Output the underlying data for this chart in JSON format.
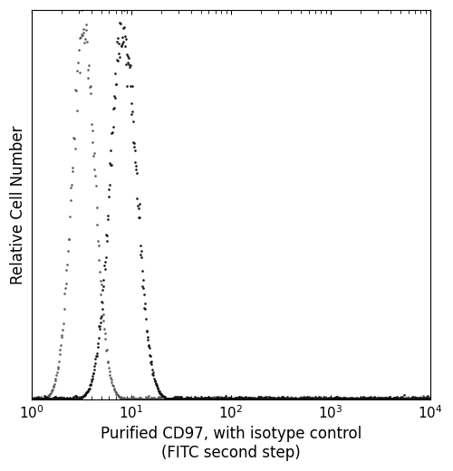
{
  "xlabel_line1": "Purified CD97, with isotype control",
  "xlabel_line2": "(FITC second step)",
  "ylabel": "Relative Cell Number",
  "xlim_log": [
    1,
    10000
  ],
  "ylim": [
    0,
    1.05
  ],
  "background_color": "#ffffff",
  "isotype_color": "#555555",
  "antibody_color": "#111111",
  "isotype_peak_log": 0.52,
  "isotype_sigma_log": 0.115,
  "antibody_peak_log": 0.92,
  "antibody_sigma_log": 0.13,
  "xlabel_fontsize": 12,
  "ylabel_fontsize": 12,
  "tick_fontsize": 11
}
